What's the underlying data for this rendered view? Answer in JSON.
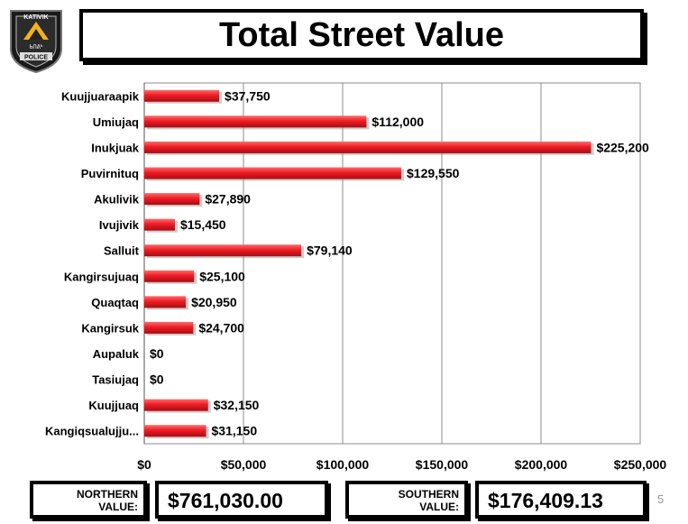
{
  "header": {
    "title": "Total Street Value"
  },
  "logo": {
    "top_text": "KATIVIK",
    "script_text": "ᑲᑎᕕᒃ",
    "bottom_text": "POLICE"
  },
  "chart_data": {
    "type": "bar",
    "orientation": "horizontal",
    "categories": [
      "Kuujjuaraapik",
      "Umiujaq",
      "Inukjuak",
      "Puvirnituq",
      "Akulivik",
      "Ivujivik",
      "Salluit",
      "Kangirsujuaq",
      "Quaqtaq",
      "Kangirsuk",
      "Aupaluk",
      "Tasiujaq",
      "Kuujjuaq",
      "Kangiqsualujju..."
    ],
    "values": [
      37750,
      112000,
      225200,
      129550,
      27890,
      15450,
      79140,
      25100,
      20950,
      24700,
      0,
      0,
      32150,
      31150
    ],
    "data_labels": [
      "$37,750",
      "$112,000",
      "$225,200",
      "$129,550",
      "$27,890",
      "$15,450",
      "$79,140",
      "$25,100",
      "$20,950",
      "$24,700",
      "$0",
      "$0",
      "$32,150",
      "$31,150"
    ],
    "x_ticks": [
      0,
      50000,
      100000,
      150000,
      200000,
      250000
    ],
    "x_tick_labels": [
      "$0",
      "$50,000",
      "$100,000",
      "$150,000",
      "$200,000",
      "$250,000"
    ],
    "xlim": [
      0,
      250000
    ],
    "grid": "vertical",
    "bar_color": "#ee1c24",
    "legend": "none"
  },
  "summary": {
    "northern_label_1": "NORTHERN",
    "northern_label_2": "VALUE:",
    "northern_value": "$761,030.00",
    "southern_label_1": "SOUTHERN",
    "southern_label_2": "VALUE:",
    "southern_value": "$176,409.13"
  },
  "page_number": "5"
}
